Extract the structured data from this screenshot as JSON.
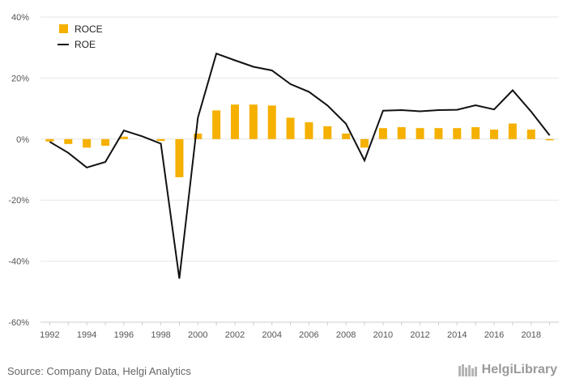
{
  "chart_data": {
    "type": "bar+line",
    "title": "",
    "xlabel": "",
    "ylabel": "",
    "x": [
      1992,
      1993,
      1994,
      1995,
      1996,
      1997,
      1998,
      1999,
      2000,
      2001,
      2002,
      2003,
      2004,
      2005,
      2006,
      2007,
      2008,
      2009,
      2010,
      2011,
      2012,
      2013,
      2014,
      2015,
      2016,
      2017,
      2018,
      2019
    ],
    "x_tick_labels": [
      "1992",
      "1994",
      "1996",
      "1998",
      "2000",
      "2002",
      "2004",
      "2006",
      "2008",
      "2010",
      "2012",
      "2014",
      "2016",
      "2018"
    ],
    "y_tick_labels": [
      "40%",
      "20%",
      "0%",
      "-20%",
      "-40%",
      "-60%"
    ],
    "y_ticks": [
      40,
      20,
      0,
      -20,
      -40,
      -60
    ],
    "ylim": [
      -60,
      40
    ],
    "grid": true,
    "legend_position": "top-left",
    "series": [
      {
        "name": "ROCE",
        "type": "bar",
        "color": "#f5b000",
        "values": [
          -0.8,
          -1.6,
          -2.8,
          -2.2,
          0.8,
          0,
          -0.6,
          -12.5,
          1.8,
          9.4,
          11.3,
          11.3,
          11.0,
          7.0,
          5.5,
          4.2,
          1.8,
          -2.8,
          3.6,
          3.9,
          3.6,
          3.6,
          3.6,
          3.9,
          3.1,
          5.1,
          3.1,
          -0.4
        ]
      },
      {
        "name": "ROE",
        "type": "line",
        "color": "#111111",
        "values": [
          -0.9,
          -4.5,
          -9.3,
          -7.5,
          2.8,
          0.9,
          -1.5,
          -45.7,
          7.0,
          28.0,
          25.8,
          23.7,
          22.5,
          18.0,
          15.5,
          11.0,
          5.0,
          -7.0,
          9.3,
          9.5,
          9.1,
          9.5,
          9.6,
          11.1,
          9.7,
          16.0,
          9.0,
          1.2
        ]
      }
    ]
  },
  "footer": {
    "source": "Source: Company Data, Helgi Analytics",
    "brand": "HelgiLibrary"
  }
}
